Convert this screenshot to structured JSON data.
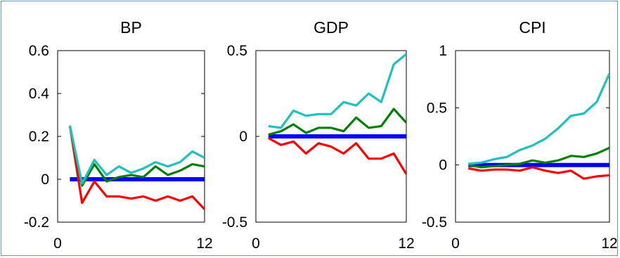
{
  "figure": {
    "background": "#ffffff",
    "border_color": "#5b9bd5"
  },
  "chart_data": [
    {
      "type": "line",
      "title": "BP",
      "xlabel": "",
      "ylabel": "",
      "xlim": [
        0,
        12
      ],
      "ylim": [
        -0.2,
        0.6
      ],
      "x_ticks": [
        "0",
        "12"
      ],
      "y_ticks": [
        "0.6",
        "0.4",
        "0.2",
        "0",
        "-0.2"
      ],
      "y_tick_values": [
        0.6,
        0.4,
        0.2,
        0,
        -0.2
      ],
      "x": [
        1,
        2,
        3,
        4,
        5,
        6,
        7,
        8,
        9,
        10,
        11,
        12
      ],
      "series": [
        {
          "color": "#ff0000",
          "values": [
            0.25,
            -0.11,
            -0.01,
            -0.08,
            -0.08,
            -0.09,
            -0.08,
            -0.1,
            -0.08,
            -0.1,
            -0.08,
            -0.14
          ]
        },
        {
          "color": "#008000",
          "values": [
            0.25,
            -0.03,
            0.07,
            -0.01,
            0.01,
            0.02,
            0.01,
            0.06,
            0.02,
            0.04,
            0.07,
            0.06
          ]
        },
        {
          "color": "#20c0c0",
          "values": [
            0.25,
            -0.02,
            0.09,
            0.02,
            0.06,
            0.03,
            0.05,
            0.08,
            0.06,
            0.08,
            0.13,
            0.1
          ]
        },
        {
          "color": "#0000ff",
          "values": [
            0,
            0,
            0,
            0,
            0,
            0,
            0,
            0,
            0,
            0,
            0,
            0
          ]
        }
      ]
    },
    {
      "type": "line",
      "title": "GDP",
      "xlabel": "",
      "ylabel": "",
      "xlim": [
        0,
        12
      ],
      "ylim": [
        -0.5,
        0.5
      ],
      "x_ticks": [
        "0",
        "12"
      ],
      "y_ticks": [
        "0.5",
        "0",
        "-0.5"
      ],
      "y_tick_values": [
        0.5,
        0,
        -0.5
      ],
      "x": [
        1,
        2,
        3,
        4,
        5,
        6,
        7,
        8,
        9,
        10,
        11,
        12
      ],
      "series": [
        {
          "color": "#ff0000",
          "values": [
            -0.01,
            -0.05,
            -0.03,
            -0.1,
            -0.04,
            -0.06,
            -0.1,
            -0.04,
            -0.13,
            -0.13,
            -0.1,
            -0.22
          ]
        },
        {
          "color": "#008000",
          "values": [
            0.01,
            0.03,
            0.07,
            0.02,
            0.05,
            0.05,
            0.03,
            0.11,
            0.05,
            0.06,
            0.16,
            0.08
          ]
        },
        {
          "color": "#20c0c0",
          "values": [
            0.06,
            0.05,
            0.15,
            0.12,
            0.13,
            0.13,
            0.2,
            0.18,
            0.25,
            0.2,
            0.42,
            0.48
          ]
        },
        {
          "color": "#0000ff",
          "values": [
            0,
            0,
            0,
            0,
            0,
            0,
            0,
            0,
            0,
            0,
            0,
            0
          ]
        }
      ]
    },
    {
      "type": "line",
      "title": "CPI",
      "xlabel": "",
      "ylabel": "",
      "xlim": [
        0,
        12
      ],
      "ylim": [
        -0.5,
        1
      ],
      "x_ticks": [
        "0",
        "12"
      ],
      "y_ticks": [
        "1",
        "0.5",
        "0",
        "-0.5"
      ],
      "y_tick_values": [
        1,
        0.5,
        0,
        -0.5
      ],
      "x": [
        1,
        2,
        3,
        4,
        5,
        6,
        7,
        8,
        9,
        10,
        11,
        12
      ],
      "series": [
        {
          "color": "#ff0000",
          "values": [
            -0.03,
            -0.05,
            -0.04,
            -0.04,
            -0.05,
            -0.02,
            -0.05,
            -0.07,
            -0.05,
            -0.12,
            -0.1,
            -0.09
          ]
        },
        {
          "color": "#008000",
          "values": [
            0.0,
            -0.02,
            -0.01,
            0.0,
            0.01,
            0.04,
            0.02,
            0.04,
            0.08,
            0.07,
            0.1,
            0.15
          ]
        },
        {
          "color": "#20c0c0",
          "values": [
            0.01,
            0.02,
            0.05,
            0.07,
            0.13,
            0.17,
            0.23,
            0.32,
            0.43,
            0.45,
            0.55,
            0.8
          ]
        },
        {
          "color": "#0000ff",
          "values": [
            0,
            0,
            0,
            0,
            0,
            0,
            0,
            0,
            0,
            0,
            0,
            0
          ]
        }
      ]
    }
  ]
}
